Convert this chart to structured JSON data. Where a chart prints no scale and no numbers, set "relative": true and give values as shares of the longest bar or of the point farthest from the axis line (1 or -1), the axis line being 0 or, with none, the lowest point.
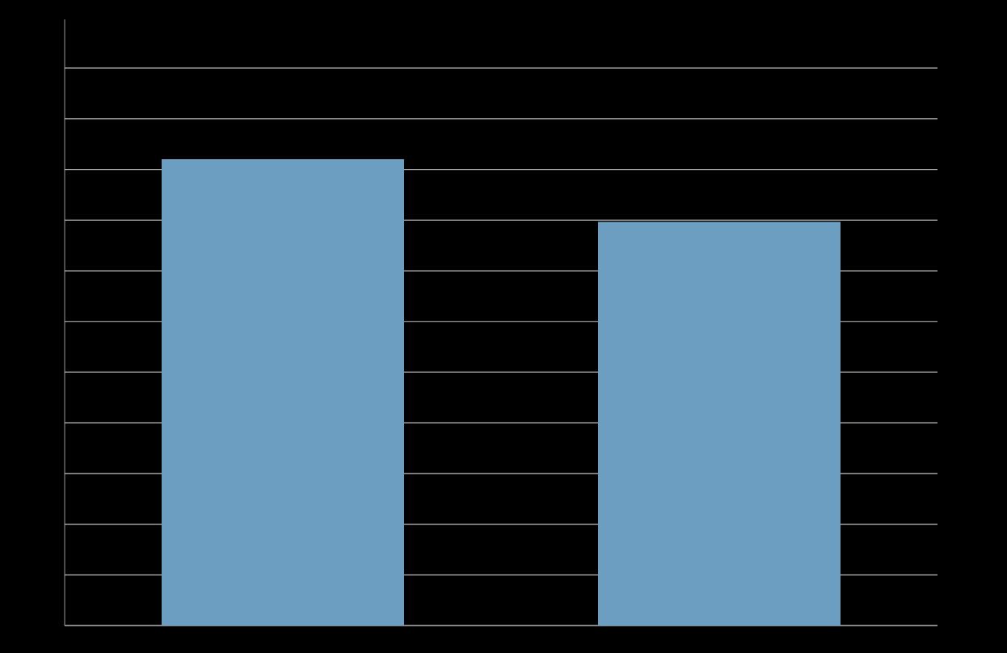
{
  "chart_data": {
    "type": "bar",
    "relative": true,
    "categories": [
      null,
      null
    ],
    "values": [
      1,
      0.866
    ],
    "color": "#6b9ec0",
    "grid": "y"
  }
}
